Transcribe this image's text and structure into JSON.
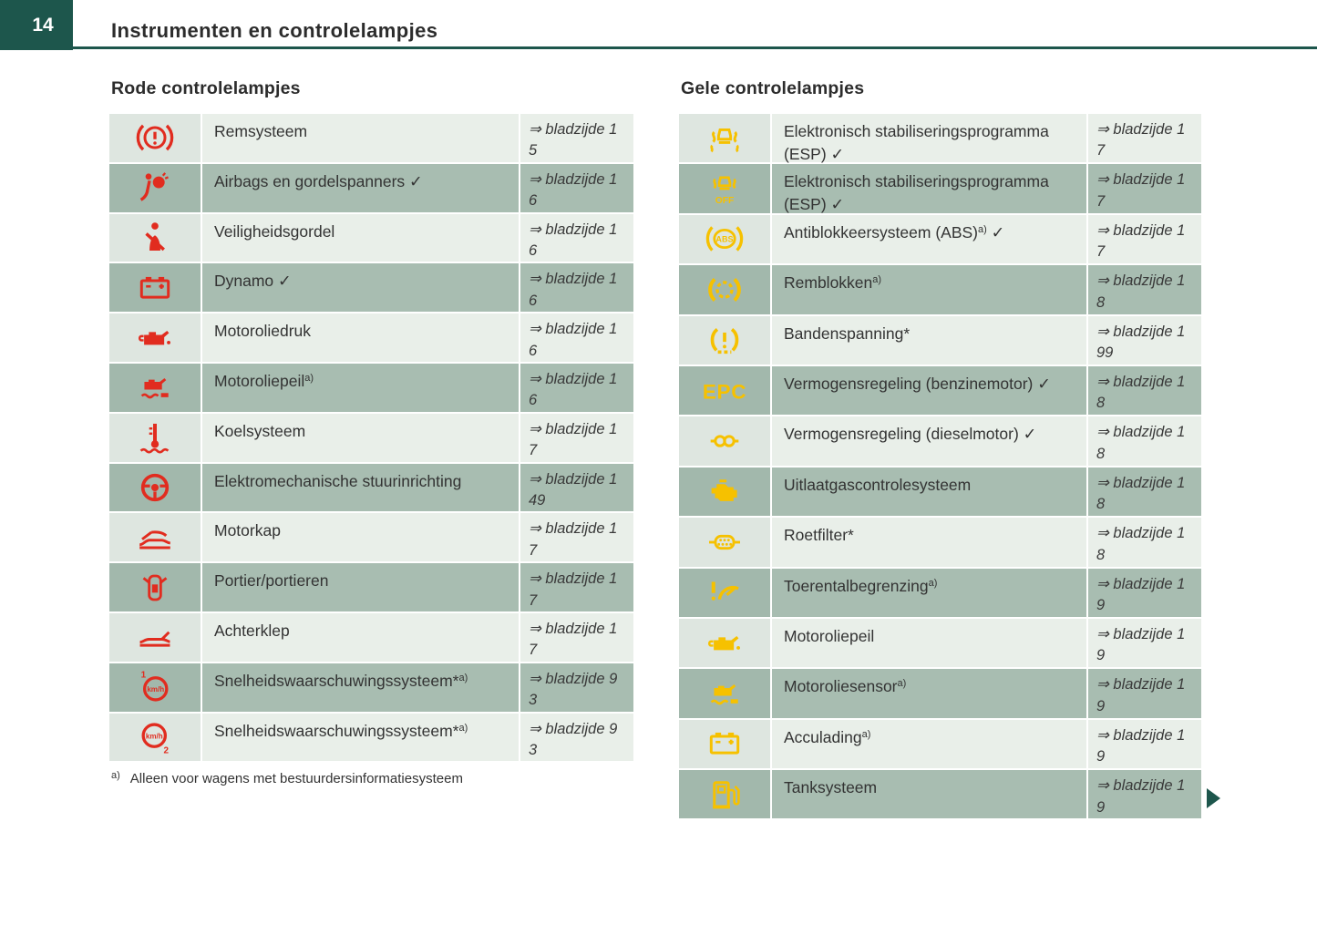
{
  "page": {
    "number": "14",
    "title": "Instrumenten en controlelampjes",
    "footnote_marker": "a)",
    "footnote_text": "Alleen voor wagens met bestuurdersinformatiesysteem"
  },
  "colors": {
    "accent_teal": "#1d564c",
    "indicator_red": "#e12c1f",
    "indicator_yellow": "#f6c100",
    "row_light_bg": "#e9efe9",
    "row_light_icon_bg": "#dee6e0",
    "row_dark_bg": "#a8bdb1",
    "row_dark_icon_bg": "#a2b8ac"
  },
  "left_table": {
    "heading": "Rode controlelampjes",
    "rows": [
      {
        "icon": "brake-warning-icon",
        "label": "Remsysteem",
        "sup": "",
        "check": false,
        "ref": "⇒ bladzijde 1\n5"
      },
      {
        "icon": "airbag-icon",
        "label": "Airbags en gordelspanners",
        "sup": "",
        "check": true,
        "ref": "⇒ bladzijde 1\n6"
      },
      {
        "icon": "seatbelt-icon",
        "label": "Veiligheidsgordel",
        "sup": "",
        "check": false,
        "ref": "⇒ bladzijde 1\n6"
      },
      {
        "icon": "battery-icon",
        "label": "Dynamo",
        "sup": "",
        "check": true,
        "ref": "⇒ bladzijde 1\n6"
      },
      {
        "icon": "oil-pressure-icon",
        "label": "Motoroliedruk",
        "sup": "",
        "check": false,
        "ref": "⇒ bladzijde 1\n6"
      },
      {
        "icon": "oil-level-icon",
        "label": "Motoroliepeil",
        "sup": "a)",
        "check": false,
        "ref": "⇒ bladzijde 1\n6"
      },
      {
        "icon": "coolant-icon",
        "label": "Koelsysteem",
        "sup": "",
        "check": false,
        "ref": "⇒ bladzijde 1\n7"
      },
      {
        "icon": "steering-wheel-icon",
        "label": "Elektromechanische stuurinrichting",
        "sup": "",
        "check": false,
        "ref": "⇒ bladzijde 1\n49"
      },
      {
        "icon": "bonnet-icon",
        "label": "Motorkap",
        "sup": "",
        "check": false,
        "ref": "⇒ bladzijde 1\n7"
      },
      {
        "icon": "door-icon",
        "label": "Portier/portieren",
        "sup": "",
        "check": false,
        "ref": "⇒ bladzijde 1\n7"
      },
      {
        "icon": "tailgate-icon",
        "label": "Achterklep",
        "sup": "",
        "check": false,
        "ref": "⇒ bladzijde 1\n7"
      },
      {
        "icon": "speed-warning-1-icon",
        "label": "Snelheidswaarschuwingssysteem*",
        "sup": "a)",
        "check": false,
        "ref": "⇒ bladzijde 9\n3"
      },
      {
        "icon": "speed-warning-2-icon",
        "label": "Snelheidswaarschuwingssysteem*",
        "sup": "a)",
        "check": false,
        "ref": "⇒ bladzijde 9\n3"
      }
    ]
  },
  "right_table": {
    "heading": "Gele controlelampjes",
    "rows": [
      {
        "icon": "esp-icon",
        "label": "Elektronisch stabiliseringsprogramma (ESP)",
        "sup": "",
        "check": true,
        "ref": "⇒ bladzijde 1\n7"
      },
      {
        "icon": "esp-off-icon",
        "label": "Elektronisch stabiliseringsprogramma (ESP)",
        "sup": "",
        "check": true,
        "ref": "⇒ bladzijde 1\n7"
      },
      {
        "icon": "abs-icon",
        "label": "Antiblokkeersysteem (ABS)",
        "sup": "a)",
        "check": true,
        "ref": "⇒ bladzijde 1\n7"
      },
      {
        "icon": "brake-pads-icon",
        "label": "Remblokken",
        "sup": "a)",
        "check": false,
        "ref": "⇒ bladzijde 1\n8"
      },
      {
        "icon": "tyre-pressure-icon",
        "label": "Bandenspanning*",
        "sup": "",
        "check": false,
        "ref": "⇒ bladzijde 1\n99"
      },
      {
        "icon": "epc-icon",
        "label": "Vermogensregeling (benzinemotor)",
        "sup": "",
        "check": true,
        "ref": "⇒ bladzijde 1\n8"
      },
      {
        "icon": "glow-plug-icon",
        "label": "Vermogensregeling (dieselmotor)",
        "sup": "",
        "check": true,
        "ref": "⇒ bladzijde 1\n8"
      },
      {
        "icon": "engine-icon",
        "label": "Uitlaatgascontrolesysteem",
        "sup": "",
        "check": false,
        "ref": "⇒ bladzijde 1\n8"
      },
      {
        "icon": "particulate-filter-icon",
        "label": "Roetfilter*",
        "sup": "",
        "check": false,
        "ref": "⇒ bladzijde 1\n8"
      },
      {
        "icon": "rev-limit-icon",
        "label": "Toerentalbegrenzing",
        "sup": "a)",
        "check": false,
        "ref": "⇒ bladzijde 1\n9"
      },
      {
        "icon": "oil-pressure-icon",
        "label": "Motoroliepeil",
        "sup": "",
        "check": false,
        "ref": "⇒ bladzijde 1\n9"
      },
      {
        "icon": "oil-level-icon",
        "label": "Motoroliesensor",
        "sup": "a)",
        "check": false,
        "ref": "⇒ bladzijde 1\n9"
      },
      {
        "icon": "battery-icon",
        "label": "Acculading",
        "sup": "a)",
        "check": false,
        "ref": "⇒ bladzijde 1\n9"
      },
      {
        "icon": "fuel-pump-icon",
        "label": "Tanksysteem",
        "sup": "",
        "check": false,
        "ref": "⇒ bladzijde 1\n9"
      }
    ]
  },
  "check_glyph": "✓"
}
